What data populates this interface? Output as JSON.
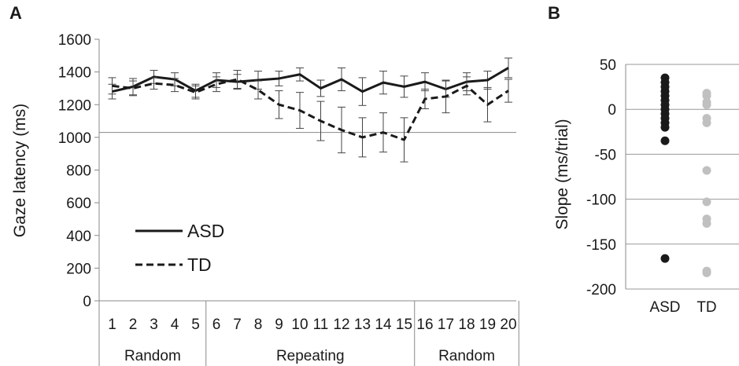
{
  "chart_data": [
    {
      "panel_label": "A",
      "type": "line",
      "ylabel": "Gaze latency (ms)",
      "xlabel": "",
      "ylim": [
        0,
        1600
      ],
      "yticks": [
        0,
        200,
        400,
        600,
        800,
        1000,
        1200,
        1400,
        1600
      ],
      "x": [
        "1",
        "2",
        "3",
        "4",
        "5",
        "6",
        "7",
        "8",
        "9",
        "10",
        "11",
        "12",
        "13",
        "14",
        "15",
        "16",
        "17",
        "18",
        "19",
        "20"
      ],
      "groups": [
        {
          "label": "Random",
          "from": 1,
          "to": 5
        },
        {
          "label": "Repeating",
          "from": 6,
          "to": 15
        },
        {
          "label": "Random",
          "from": 16,
          "to": 20
        }
      ],
      "reference_line": 1030,
      "grid": false,
      "legend": "bottom-left",
      "series": [
        {
          "name": "ASD",
          "style": "solid",
          "color": "#1a1a1a",
          "values": [
            1280,
            1310,
            1370,
            1355,
            1285,
            1350,
            1340,
            1350,
            1360,
            1385,
            1300,
            1355,
            1280,
            1335,
            1310,
            1340,
            1295,
            1340,
            1350,
            1425
          ],
          "error": [
            45,
            50,
            40,
            40,
            40,
            45,
            45,
            55,
            45,
            40,
            50,
            70,
            85,
            70,
            65,
            55,
            50,
            55,
            55,
            60
          ]
        },
        {
          "name": "TD",
          "style": "dashed",
          "color": "#1a1a1a",
          "values": [
            1315,
            1300,
            1330,
            1320,
            1275,
            1325,
            1355,
            1290,
            1200,
            1165,
            1100,
            1045,
            1000,
            1030,
            985,
            1235,
            1250,
            1315,
            1200,
            1285
          ],
          "error": [
            50,
            45,
            35,
            40,
            40,
            45,
            55,
            55,
            85,
            110,
            120,
            140,
            120,
            120,
            135,
            60,
            100,
            55,
            105,
            70
          ]
        }
      ]
    },
    {
      "panel_label": "B",
      "type": "scatter",
      "ylabel": "Slope (ms/trial)",
      "xlabel": "",
      "ylim": [
        -200,
        50
      ],
      "yticks": [
        50,
        0,
        -50,
        -100,
        -150,
        -200
      ],
      "categories": [
        "ASD",
        "TD"
      ],
      "grid": true,
      "series": [
        {
          "name": "ASD",
          "color": "#1a1a1a",
          "values": [
            35,
            30,
            25,
            20,
            15,
            10,
            5,
            0,
            -5,
            -10,
            -15,
            -20,
            -35,
            -166
          ]
        },
        {
          "name": "TD",
          "color": "#c0c0c0",
          "values": [
            18,
            15,
            8,
            5,
            -10,
            -15,
            -68,
            -103,
            -122,
            -127,
            -180,
            -182
          ]
        }
      ]
    }
  ]
}
